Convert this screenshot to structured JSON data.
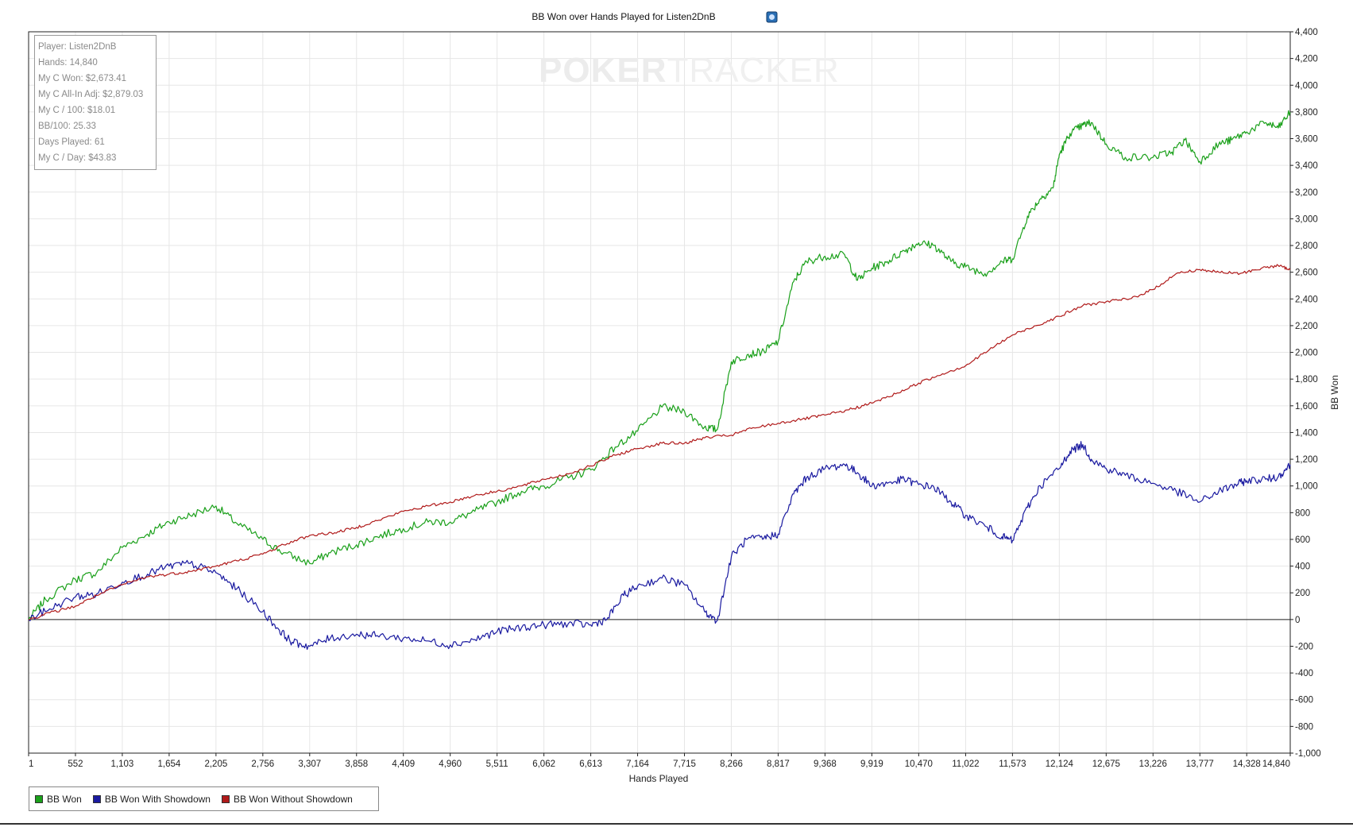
{
  "chart_data": {
    "type": "line",
    "title": "BB Won over Hands Played for Listen2DnB",
    "xlabel": "Hands Played",
    "ylabel": "BB Won",
    "xlim": [
      1,
      14840
    ],
    "ylim": [
      -1000,
      4400
    ],
    "x_ticks": [
      "1",
      "552",
      "1,103",
      "1,654",
      "2,205",
      "2,756",
      "3,307",
      "3,858",
      "4,409",
      "4,960",
      "5,511",
      "6,062",
      "6,613",
      "7,164",
      "7,715",
      "8,266",
      "8,817",
      "9,368",
      "9,919",
      "10,470",
      "11,022",
      "11,573",
      "12,124",
      "12,675",
      "13,226",
      "13,777",
      "14,328",
      "14,840"
    ],
    "y_ticks": [
      "4,400",
      "4,200",
      "4,000",
      "3,800",
      "3,600",
      "3,400",
      "3,200",
      "3,000",
      "2,800",
      "2,600",
      "2,400",
      "2,200",
      "2,000",
      "1,800",
      "1,600",
      "1,400",
      "1,200",
      "1,000",
      "800",
      "600",
      "400",
      "200",
      "0",
      "-200",
      "-400",
      "-600",
      "-800",
      "-1,000"
    ],
    "grid": true,
    "legend_position": "bottom-left",
    "series": [
      {
        "name": "BB Won",
        "color": "#1aa01a",
        "x": [
          1,
          200,
          552,
          800,
          1103,
          1400,
          1654,
          1900,
          2205,
          2450,
          2756,
          3000,
          3307,
          3550,
          3858,
          4100,
          4409,
          4700,
          4960,
          5250,
          5511,
          5800,
          6062,
          6350,
          6613,
          6900,
          7164,
          7450,
          7715,
          7950,
          8100,
          8266,
          8450,
          8650,
          8817,
          9000,
          9150,
          9368,
          9600,
          9750,
          9919,
          10100,
          10300,
          10470,
          10650,
          10850,
          11022,
          11250,
          11450,
          11573,
          11750,
          11900,
          12050,
          12124,
          12250,
          12400,
          12500,
          12675,
          12900,
          13226,
          13450,
          13600,
          13777,
          14000,
          14150,
          14328,
          14550,
          14700,
          14840
        ],
        "y": [
          0,
          150,
          300,
          350,
          540,
          640,
          730,
          780,
          850,
          720,
          600,
          500,
          420,
          500,
          560,
          620,
          680,
          730,
          730,
          810,
          880,
          960,
          1000,
          1060,
          1120,
          1290,
          1410,
          1590,
          1560,
          1440,
          1420,
          1930,
          1980,
          2010,
          2080,
          2530,
          2680,
          2720,
          2730,
          2540,
          2630,
          2680,
          2760,
          2820,
          2800,
          2680,
          2640,
          2590,
          2680,
          2700,
          3020,
          3150,
          3230,
          3480,
          3640,
          3700,
          3720,
          3560,
          3460,
          3460,
          3500,
          3590,
          3430,
          3560,
          3590,
          3650,
          3720,
          3680,
          3800
        ]
      },
      {
        "name": "BB Won With Showdown",
        "color": "#1a1aa0",
        "x": [
          1,
          250,
          552,
          800,
          1103,
          1400,
          1654,
          1900,
          2205,
          2450,
          2756,
          2950,
          3100,
          3307,
          3550,
          3858,
          4100,
          4409,
          4700,
          4960,
          5250,
          5511,
          5800,
          6062,
          6350,
          6613,
          6800,
          7000,
          7164,
          7450,
          7715,
          7950,
          8100,
          8266,
          8450,
          8650,
          8817,
          9000,
          9150,
          9368,
          9600,
          9750,
          9919,
          10100,
          10300,
          10470,
          10650,
          10850,
          11022,
          11250,
          11450,
          11573,
          11750,
          11900,
          12124,
          12250,
          12400,
          12500,
          12675,
          12900,
          13226,
          13500,
          13777,
          14000,
          14200,
          14328,
          14550,
          14700,
          14840
        ],
        "y": [
          0,
          80,
          170,
          190,
          280,
          340,
          400,
          420,
          350,
          230,
          60,
          -80,
          -170,
          -200,
          -140,
          -110,
          -120,
          -140,
          -160,
          -190,
          -150,
          -90,
          -60,
          -40,
          -30,
          -40,
          0,
          180,
          250,
          310,
          260,
          60,
          -10,
          470,
          600,
          610,
          640,
          940,
          1060,
          1130,
          1160,
          1100,
          1000,
          1020,
          1050,
          1010,
          990,
          880,
          780,
          700,
          620,
          590,
          840,
          1000,
          1130,
          1260,
          1310,
          1200,
          1130,
          1080,
          1020,
          960,
          880,
          960,
          1010,
          1040,
          1050,
          1070,
          1160
        ]
      },
      {
        "name": "BB Won Without Showdown",
        "color": "#b01a1a",
        "x": [
          1,
          250,
          552,
          800,
          1103,
          1400,
          1654,
          1900,
          2205,
          2450,
          2756,
          3000,
          3307,
          3600,
          3858,
          4100,
          4409,
          4700,
          4960,
          5250,
          5511,
          5800,
          6062,
          6350,
          6613,
          6900,
          7164,
          7450,
          7715,
          7950,
          8266,
          8500,
          8817,
          9100,
          9368,
          9650,
          9919,
          10200,
          10470,
          10750,
          11022,
          11300,
          11573,
          11850,
          12124,
          12400,
          12675,
          12950,
          13226,
          13500,
          13777,
          14000,
          14250,
          14500,
          14700,
          14840
        ],
        "y": [
          0,
          50,
          100,
          180,
          260,
          320,
          340,
          360,
          400,
          440,
          490,
          560,
          630,
          650,
          690,
          740,
          810,
          850,
          880,
          930,
          960,
          1000,
          1050,
          1090,
          1150,
          1230,
          1280,
          1320,
          1320,
          1360,
          1380,
          1430,
          1470,
          1500,
          1530,
          1570,
          1620,
          1690,
          1770,
          1840,
          1900,
          2020,
          2130,
          2200,
          2270,
          2350,
          2380,
          2400,
          2470,
          2590,
          2620,
          2600,
          2590,
          2630,
          2650,
          2620
        ]
      }
    ]
  },
  "stats": {
    "player": "Player: Listen2DnB",
    "hands": "Hands: 14,840",
    "my_c_won": "My C Won: $2,673.41",
    "my_c_allin_adj": "My C All-In Adj: $2,879.03",
    "my_c_100": "My C / 100: $18.01",
    "bb_100": "BB/100: 25.33",
    "days_played": "Days Played: 61",
    "my_c_day": "My C / Day: $43.83"
  },
  "watermark": {
    "part1": "POKER",
    "part2": "TRACKER"
  },
  "legend": {
    "items": [
      {
        "label": "BB Won",
        "color": "#1aa01a"
      },
      {
        "label": "BB Won With Showdown",
        "color": "#1a1aa0"
      },
      {
        "label": "BB Won Without Showdown",
        "color": "#b01a1a"
      }
    ]
  }
}
